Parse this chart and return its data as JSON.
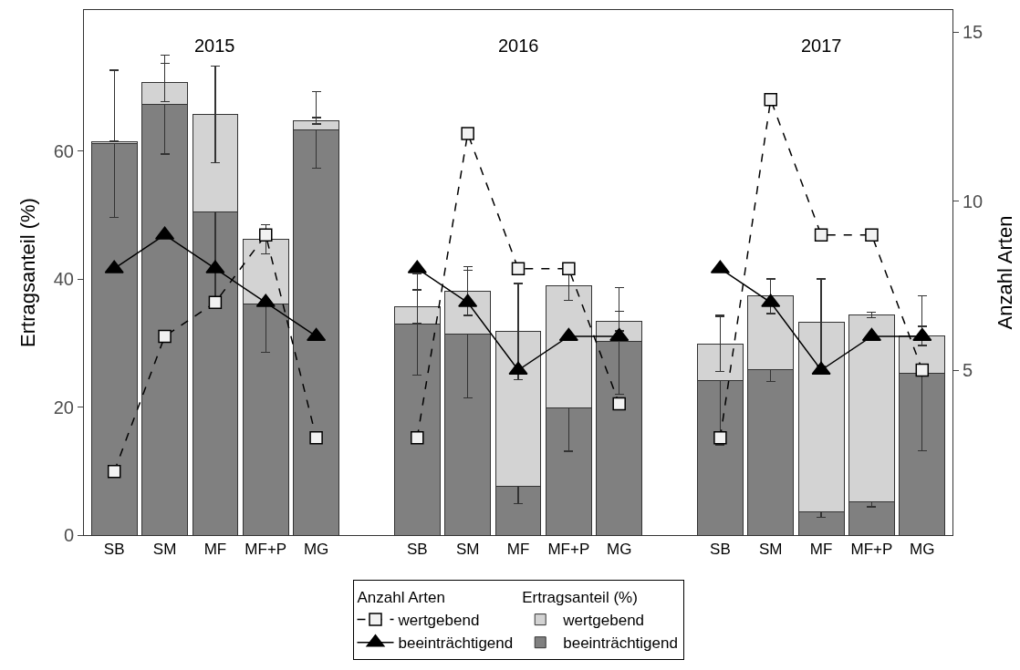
{
  "chart_data": {
    "type": "bar",
    "stacked": true,
    "ylabel": "Ertragsanteil (%)",
    "y2label": "Anzahl Arten",
    "categories": [
      "SB",
      "SM",
      "MF",
      "MF+P",
      "MG",
      null,
      "SB",
      "SM",
      "MF",
      "MF+P",
      "MG",
      null,
      "SB",
      "SM",
      "MF",
      "MF+P",
      "MG"
    ],
    "series": [
      {
        "name": "beeinträchtigend",
        "color": "#808080",
        "values": [
          61.1,
          67.2,
          50.4,
          36.1,
          63.3,
          null,
          32.9,
          31.4,
          7.6,
          19.8,
          30.3,
          null,
          24.2,
          25.9,
          3.6,
          5.2,
          25.3
        ],
        "errors": [
          11.5,
          7.7,
          13.6,
          7.5,
          6,
          null,
          7.9,
          10,
          2.7,
          6.7,
          8.3,
          null,
          10.1,
          1.9,
          0.8,
          0.8,
          12.1
        ]
      },
      {
        "name": "wertgebend",
        "color": "#d3d3d3",
        "values": [
          0.4,
          3.5,
          15.3,
          10.1,
          1.4,
          null,
          2.8,
          6.7,
          24.2,
          19.1,
          3.1,
          null,
          5.6,
          11.4,
          29.6,
          29.2,
          5.8
        ],
        "errors": [
          0.1,
          3,
          7.5,
          2.3,
          0.5,
          null,
          2.6,
          3.8,
          7.5,
          2.2,
          1.5,
          null,
          4.3,
          2.7,
          6.8,
          0.4,
          1.5
        ]
      },
      {
        "name": "wertgebend",
        "type": "line",
        "axis": "y2",
        "color": "#000000",
        "marker": "square",
        "line_style": "dashed",
        "values": [
          2,
          6,
          7,
          9,
          3,
          null,
          3,
          12,
          8,
          8,
          4,
          null,
          3,
          13,
          9,
          9,
          5
        ]
      },
      {
        "name": "beeinträchtigend",
        "type": "line",
        "axis": "y2",
        "color": "#000000",
        "marker": "triangle",
        "line_style": "solid",
        "values": [
          8,
          9,
          8,
          7,
          6,
          null,
          8,
          7,
          5,
          6,
          6,
          null,
          8,
          7,
          5,
          6,
          6
        ]
      }
    ],
    "ylim": [
      0,
      82
    ],
    "yticks": [
      0,
      20,
      40,
      60
    ],
    "y2lim": [
      0.12,
      15.65
    ],
    "y2ticks": [
      5,
      10,
      15
    ],
    "annotations": [
      "2015",
      "2016",
      "2017"
    ],
    "legend": "bottom"
  }
}
